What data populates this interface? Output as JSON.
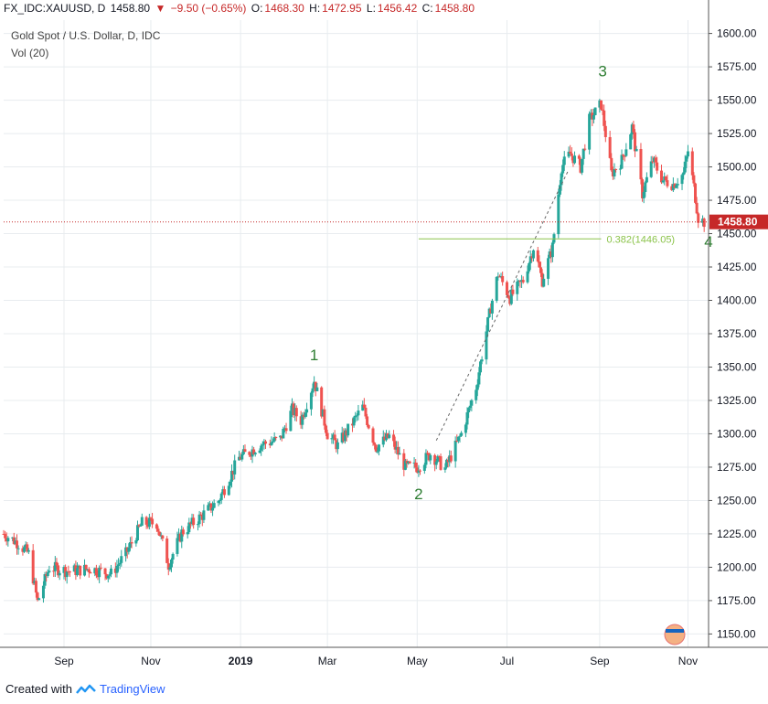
{
  "header": {
    "symbol": "FX_IDC:XAUUSD, D",
    "last": "1458.80",
    "change": "−9.50 (−0.65%)",
    "open_label": "O:",
    "open": "1468.30",
    "high_label": "H:",
    "high": "1472.95",
    "low_label": "L:",
    "low": "1456.42",
    "close_label": "C:",
    "close": "1458.80",
    "down_arrow": "down-triangle-icon"
  },
  "title": "Gold Spot / U.S. Dollar, D, IDC",
  "vol_label": "Vol (20)",
  "footer": {
    "created": "Created with",
    "brand": "TradingView"
  },
  "colors": {
    "up": "#26a69a",
    "down": "#ef5350",
    "fib": "#8bc34a",
    "wave": "#2e7d32",
    "price_line": "#c62828",
    "grid": "#e8ecef"
  },
  "chart_data": {
    "type": "candlestick",
    "title": "Gold Spot / U.S. Dollar, D, IDC",
    "ylim": [
      1140,
      1610
    ],
    "y_ticks": [
      1150,
      1175,
      1200,
      1225,
      1250,
      1275,
      1300,
      1325,
      1350,
      1375,
      1400,
      1425,
      1450,
      1475,
      1500,
      1525,
      1550,
      1575,
      1600
    ],
    "y_tick_labels": [
      "1150.00",
      "1175.00",
      "1200.00",
      "1225.00",
      "1250.00",
      "1275.00",
      "1300.00",
      "1325.00",
      "1350.00",
      "1375.00",
      "1400.00",
      "1425.00",
      "1450.00",
      "1475.00",
      "1500.00",
      "1525.00",
      "1550.00",
      "1575.00",
      "1600.00"
    ],
    "x_ticks": [
      {
        "label": "Sep",
        "date": "2018-09-03"
      },
      {
        "label": "Nov",
        "date": "2018-11-01"
      },
      {
        "label": "2019",
        "date": "2019-01-01"
      },
      {
        "label": "Mar",
        "date": "2019-03-01"
      },
      {
        "label": "May",
        "date": "2019-05-01"
      },
      {
        "label": "Jul",
        "date": "2019-07-01"
      },
      {
        "label": "Sep",
        "date": "2019-09-02"
      },
      {
        "label": "Nov",
        "date": "2019-11-01"
      }
    ],
    "x_range": [
      "2018-07-24",
      "2019-11-15"
    ],
    "price_path": [
      [
        "2018-07-24",
        1225
      ],
      [
        "2018-08-03",
        1218
      ],
      [
        "2018-08-10",
        1210
      ],
      [
        "2018-08-16",
        1174
      ],
      [
        "2018-08-24",
        1200
      ],
      [
        "2018-09-07",
        1197
      ],
      [
        "2018-09-21",
        1199
      ],
      [
        "2018-10-05",
        1195
      ],
      [
        "2018-10-15",
        1210
      ],
      [
        "2018-10-26",
        1233
      ],
      [
        "2018-11-05",
        1233
      ],
      [
        "2018-11-13",
        1202
      ],
      [
        "2018-11-22",
        1226
      ],
      [
        "2018-12-05",
        1238
      ],
      [
        "2018-12-17",
        1250
      ],
      [
        "2018-12-31",
        1282
      ],
      [
        "2019-01-15",
        1292
      ],
      [
        "2019-01-28",
        1296
      ],
      [
        "2019-02-05",
        1318
      ],
      [
        "2019-02-11",
        1310
      ],
      [
        "2019-02-20",
        1340
      ],
      [
        "2019-03-01",
        1300
      ],
      [
        "2019-03-08",
        1291
      ],
      [
        "2019-03-15",
        1303
      ],
      [
        "2019-03-25",
        1320
      ],
      [
        "2019-04-03",
        1290
      ],
      [
        "2019-04-12",
        1298
      ],
      [
        "2019-04-23",
        1275
      ],
      [
        "2019-05-01",
        1275
      ],
      [
        "2019-05-10",
        1285
      ],
      [
        "2019-05-20",
        1274
      ],
      [
        "2019-05-31",
        1300
      ],
      [
        "2019-06-10",
        1335
      ],
      [
        "2019-06-20",
        1395
      ],
      [
        "2019-06-25",
        1420
      ],
      [
        "2019-07-03",
        1402
      ],
      [
        "2019-07-12",
        1415
      ],
      [
        "2019-07-19",
        1440
      ],
      [
        "2019-07-25",
        1415
      ],
      [
        "2019-08-01",
        1440
      ],
      [
        "2019-08-07",
        1500
      ],
      [
        "2019-08-13",
        1510
      ],
      [
        "2019-08-20",
        1500
      ],
      [
        "2019-08-26",
        1535
      ],
      [
        "2019-09-03",
        1547
      ],
      [
        "2019-09-10",
        1495
      ],
      [
        "2019-09-17",
        1505
      ],
      [
        "2019-09-24",
        1530
      ],
      [
        "2019-10-01",
        1480
      ],
      [
        "2019-10-08",
        1505
      ],
      [
        "2019-10-15",
        1490
      ],
      [
        "2019-10-22",
        1487
      ],
      [
        "2019-10-29",
        1495
      ],
      [
        "2019-11-01",
        1512
      ],
      [
        "2019-11-05",
        1485
      ],
      [
        "2019-11-08",
        1462
      ],
      [
        "2019-11-12",
        1458.8
      ]
    ],
    "last_price": 1458.8,
    "last_price_label": "1458.80",
    "fib": {
      "label": "0.382(1446.05)",
      "value": 1446.05,
      "from": "2019-05-02",
      "to": "2019-09-03"
    },
    "fib_line": {
      "from": [
        "2019-05-14",
        1295
      ],
      "to": [
        "2019-08-12",
        1498
      ]
    },
    "waves": [
      {
        "label": "1",
        "date": "2019-02-20",
        "value": 1355
      },
      {
        "label": "2",
        "date": "2019-05-02",
        "value": 1251
      },
      {
        "label": "3",
        "date": "2019-09-04",
        "value": 1568
      },
      {
        "label": "4",
        "date": "2019-11-15",
        "value": 1440
      }
    ]
  }
}
